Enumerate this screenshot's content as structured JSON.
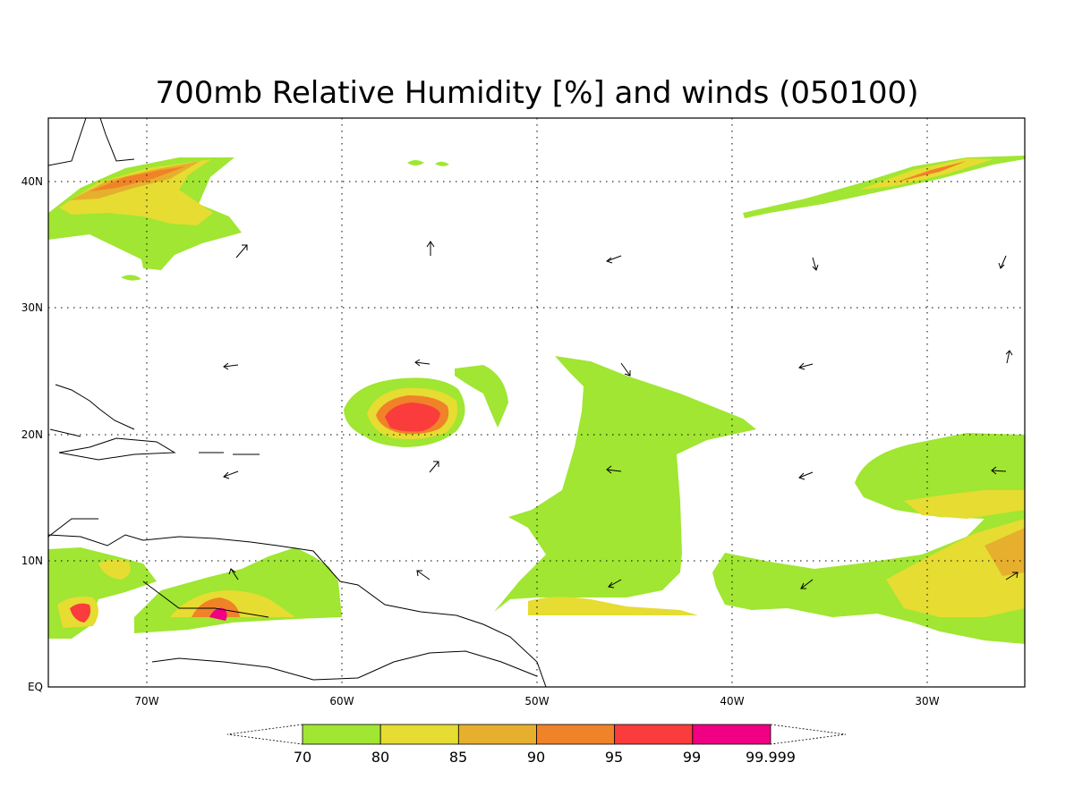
{
  "title": "700mb Relative Humidity [%] and winds (050100)",
  "axes": {
    "lat_labels": [
      "40N",
      "30N",
      "20N",
      "10N",
      "EQ"
    ],
    "lon_labels": [
      "70W",
      "60W",
      "50W",
      "40W",
      "30W"
    ]
  },
  "colorbar": {
    "levels": [
      "70",
      "80",
      "85",
      "90",
      "95",
      "99",
      "99.999"
    ],
    "colors": [
      "#a0e632",
      "#e6dc32",
      "#e6af2d",
      "#f08228",
      "#fa3c3c",
      "#f00082"
    ]
  },
  "map": {
    "extent": {
      "lon_min": -75,
      "lon_max": -25,
      "lat_min": 0,
      "lat_max": 45
    },
    "grid_interval_deg": 10
  }
}
